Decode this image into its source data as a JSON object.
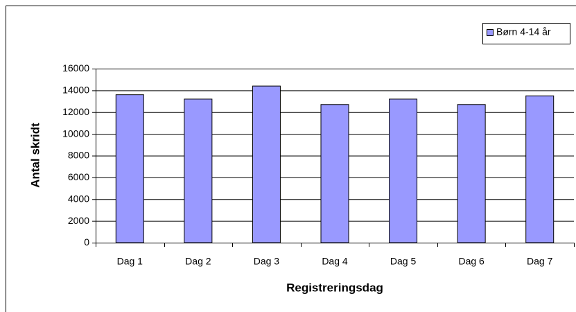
{
  "chart_data": {
    "type": "bar",
    "x_label": "Registreringsdag",
    "y_label": "Antal skridt",
    "categories": [
      "Dag 1",
      "Dag 2",
      "Dag 3",
      "Dag 4",
      "Dag 5",
      "Dag 6",
      "Dag 7"
    ],
    "series": [
      {
        "name": "Børn 4-14 år",
        "color": "#9999ff",
        "values": [
          13600,
          13200,
          14400,
          12700,
          13200,
          12700,
          13500
        ]
      }
    ],
    "ylim": [
      0,
      16000
    ],
    "yticks": [
      0,
      2000,
      4000,
      6000,
      8000,
      10000,
      12000,
      14000,
      16000
    ],
    "grid": true,
    "legend_position": "top-right"
  }
}
